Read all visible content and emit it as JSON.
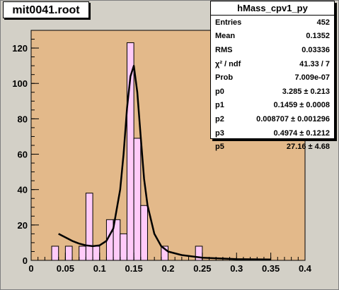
{
  "file_title": "mit0041.root",
  "stats": {
    "title": "hMass_cpv1_py",
    "rows": [
      {
        "key": "Entries",
        "value": "452"
      },
      {
        "key": "Mean",
        "value": "0.1352"
      },
      {
        "key": "RMS",
        "value": "0.03336"
      },
      {
        "key": "χ² / ndf",
        "value": "41.33 / 7"
      },
      {
        "key": "Prob",
        "value": "7.009e-07"
      },
      {
        "key": "p0",
        "value": "3.285 ± 0.213"
      },
      {
        "key": "p1",
        "value": "0.1459 ± 0.0008"
      },
      {
        "key": "p2",
        "value": "0.008707 ± 0.001296"
      },
      {
        "key": "p3",
        "value": "0.4974 ± 0.1212"
      },
      {
        "key": "p5",
        "value": "27.16 ± 4.68"
      }
    ]
  },
  "colors": {
    "frame_fill": "#e3b98a",
    "hist_fill": "#ffcbf9",
    "outline": "#000000",
    "canvas_bg": "#d3d0c7"
  },
  "chart_data": {
    "type": "bar",
    "title": "",
    "xlabel": "",
    "ylabel": "",
    "xlim": [
      0,
      0.4
    ],
    "ylim": [
      0,
      130
    ],
    "x_ticks": [
      "0",
      "0.05",
      "0.1",
      "0.15",
      "0.2",
      "0.25",
      "0.3",
      "0.35",
      "0.4"
    ],
    "y_ticks": [
      "0",
      "20",
      "40",
      "60",
      "80",
      "100",
      "120"
    ],
    "bin_width": 0.01,
    "bins": [
      {
        "x": 0.035,
        "y": 8
      },
      {
        "x": 0.055,
        "y": 8
      },
      {
        "x": 0.075,
        "y": 8
      },
      {
        "x": 0.085,
        "y": 38
      },
      {
        "x": 0.095,
        "y": 8
      },
      {
        "x": 0.115,
        "y": 23
      },
      {
        "x": 0.125,
        "y": 23
      },
      {
        "x": 0.135,
        "y": 15
      },
      {
        "x": 0.145,
        "y": 123
      },
      {
        "x": 0.155,
        "y": 69
      },
      {
        "x": 0.165,
        "y": 31
      },
      {
        "x": 0.195,
        "y": 8
      },
      {
        "x": 0.245,
        "y": 8
      }
    ],
    "fit_curve": {
      "x": [
        0.04,
        0.05,
        0.06,
        0.07,
        0.08,
        0.09,
        0.1,
        0.11,
        0.12,
        0.13,
        0.135,
        0.14,
        0.145,
        0.15,
        0.155,
        0.16,
        0.165,
        0.17,
        0.18,
        0.19,
        0.2,
        0.22,
        0.25,
        0.3,
        0.35
      ],
      "y": [
        15,
        13,
        11,
        9.5,
        8.5,
        8,
        8.5,
        11,
        18,
        40,
        60,
        86,
        104,
        110,
        95,
        70,
        46,
        31,
        15,
        8,
        5,
        3,
        1.5,
        0.7,
        0.5
      ]
    },
    "grid": false,
    "legend": "none"
  }
}
